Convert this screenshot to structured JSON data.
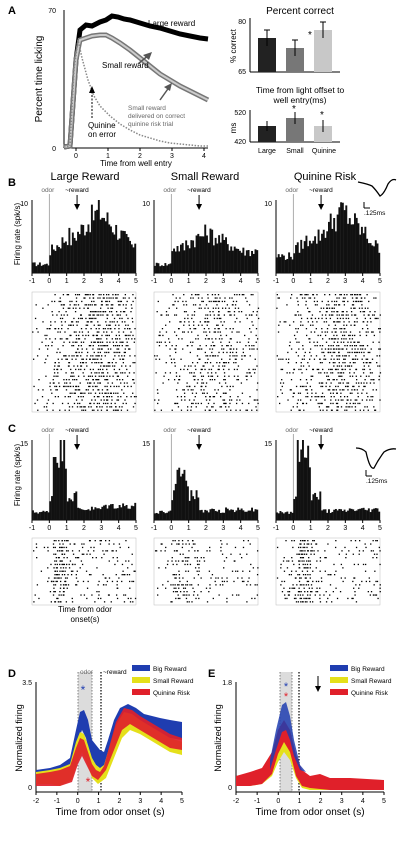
{
  "panel_a": {
    "letter": "A",
    "licking": {
      "ylabel": "Percent time licking",
      "xlabel": "Time from well entry",
      "xticks": [
        "0",
        "1",
        "2",
        "3",
        "4"
      ],
      "yticks": [
        "0",
        "70"
      ],
      "annotations": {
        "large": "Large reward",
        "small": "Small reward",
        "risk_line1": "Small reward",
        "risk_line2": "delivered on correct",
        "risk_line3": "quinine risk trial",
        "quinine_line1": "Quinine",
        "quinine_line2": "on error"
      }
    },
    "percent_correct": {
      "title": "Percent correct",
      "ylabel": "% correct",
      "yticks": [
        "80",
        "65"
      ],
      "sig_mark": "*"
    },
    "time_to_well": {
      "title": "Time from light offset to",
      "title2": "well entry(ms)",
      "ylabel": "ms",
      "yticks": [
        "520",
        "420"
      ],
      "categories": [
        "Large",
        "Small",
        "Quinine"
      ],
      "sig_mark": "*"
    }
  },
  "panel_b": {
    "letter": "B",
    "titles": [
      "Large Reward",
      "Small Reward",
      "Quinine Risk"
    ],
    "ylabel": "Firing rate (spk/s)",
    "ytick": "10",
    "odor": "odor",
    "reward": "~reward",
    "xticks": [
      "-1",
      "0",
      "1",
      "2",
      "3",
      "4",
      "5"
    ],
    "scale": ".125ms"
  },
  "panel_c": {
    "letter": "C",
    "ylabel": "Firing rate (spk/s)",
    "ytick": "15",
    "odor": "odor",
    "reward": "~reward",
    "xticks": [
      "-1",
      "0",
      "1",
      "2",
      "3",
      "4",
      "5"
    ],
    "xlabel1": "Time from odor",
    "xlabel2": "onset(s)",
    "scale": ".125ms"
  },
  "panel_d": {
    "letter": "D",
    "ylabel": "Normalized firing",
    "xlabel": "Time from odor onset (s)",
    "yticks": [
      "3.5",
      "0"
    ],
    "xticks": [
      "-2",
      "-1",
      "0",
      "1",
      "2",
      "3",
      "4",
      "5"
    ],
    "odor": "odor",
    "reward": "~reward",
    "legend": [
      "Big Reward",
      "Small Reward",
      "Quinine Risk"
    ],
    "colors": [
      "#1f3db0",
      "#e5e01a",
      "#e0202a"
    ],
    "stars": [
      "*",
      "*"
    ]
  },
  "panel_e": {
    "letter": "E",
    "ylabel": "Normalized firing",
    "xlabel": "Time from odor onset (s)",
    "yticks": [
      "1.8",
      "0"
    ],
    "xticks": [
      "-2",
      "-1",
      "0",
      "1",
      "2",
      "3",
      "4",
      "5"
    ],
    "legend": [
      "Big Reward",
      "Small Reward",
      "Quinine Risk"
    ],
    "colors": [
      "#1f3db0",
      "#e5e01a",
      "#e0202a"
    ],
    "stars": [
      "*",
      "*"
    ]
  }
}
